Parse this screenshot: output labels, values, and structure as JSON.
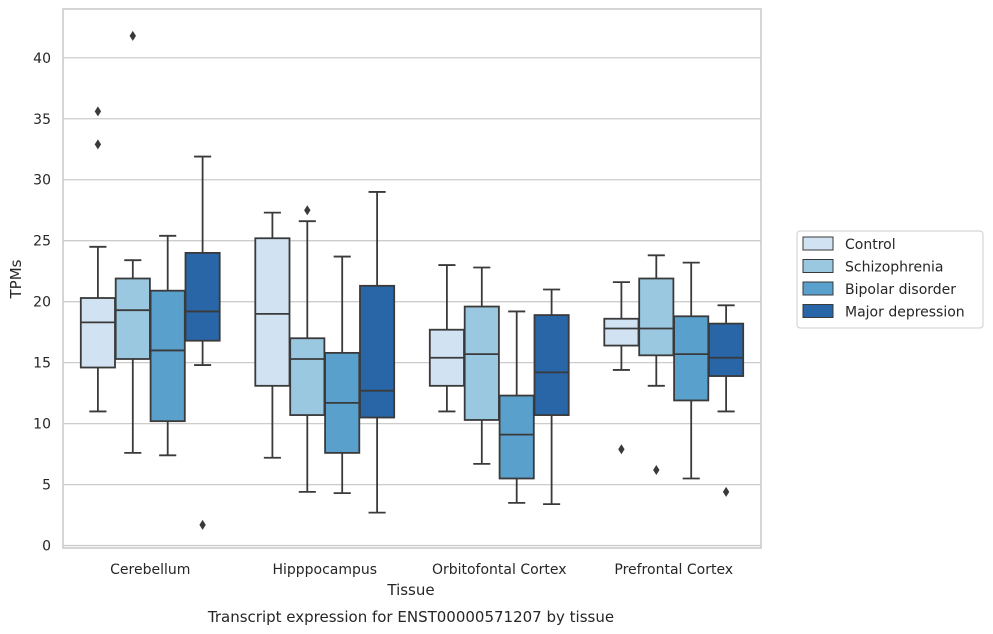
{
  "chart_data": {
    "type": "box",
    "title": "",
    "caption": "Transcript expression for ENST00000571207 by tissue",
    "xlabel": "Tissue",
    "ylabel": "TPMs",
    "ylim": [
      -0.2,
      44
    ],
    "yticks": [
      0,
      5,
      10,
      15,
      20,
      25,
      30,
      35,
      40
    ],
    "grid": true,
    "legend_position": "right",
    "categories": [
      "Cerebellum",
      "Hipppocampus",
      "Orbitofontal Cortex",
      "Prefrontal Cortex"
    ],
    "series": [
      {
        "name": "Control",
        "color": "#d1e2f2",
        "boxes": [
          {
            "whislo": 11.0,
            "q1": 14.6,
            "med": 18.3,
            "q3": 20.3,
            "whishi": 24.5,
            "fliers": [
              35.6,
              32.9
            ]
          },
          {
            "whislo": 7.2,
            "q1": 13.1,
            "med": 19.0,
            "q3": 25.2,
            "whishi": 27.3,
            "fliers": []
          },
          {
            "whislo": 11.0,
            "q1": 13.1,
            "med": 15.4,
            "q3": 17.7,
            "whishi": 23.0,
            "fliers": []
          },
          {
            "whislo": 14.4,
            "q1": 16.4,
            "med": 17.8,
            "q3": 18.6,
            "whishi": 21.6,
            "fliers": [
              7.9
            ]
          }
        ]
      },
      {
        "name": "Schizophrenia",
        "color": "#9ac8e0",
        "boxes": [
          {
            "whislo": 7.6,
            "q1": 15.3,
            "med": 19.3,
            "q3": 21.9,
            "whishi": 23.4,
            "fliers": [
              41.8
            ]
          },
          {
            "whislo": 4.4,
            "q1": 10.7,
            "med": 15.3,
            "q3": 17.0,
            "whishi": 26.6,
            "fliers": [
              27.5
            ]
          },
          {
            "whislo": 6.7,
            "q1": 10.3,
            "med": 15.7,
            "q3": 19.6,
            "whishi": 22.8,
            "fliers": []
          },
          {
            "whislo": 13.1,
            "q1": 15.6,
            "med": 17.8,
            "q3": 21.9,
            "whishi": 23.8,
            "fliers": [
              6.2
            ]
          }
        ]
      },
      {
        "name": "Bipolar disorder",
        "color": "#5aa0cd",
        "boxes": [
          {
            "whislo": 7.4,
            "q1": 10.2,
            "med": 16.0,
            "q3": 20.9,
            "whishi": 25.4,
            "fliers": []
          },
          {
            "whislo": 4.3,
            "q1": 7.6,
            "med": 11.7,
            "q3": 15.8,
            "whishi": 23.7,
            "fliers": []
          },
          {
            "whislo": 3.5,
            "q1": 5.5,
            "med": 9.1,
            "q3": 12.3,
            "whishi": 19.2,
            "fliers": []
          },
          {
            "whislo": 5.5,
            "q1": 11.9,
            "med": 15.7,
            "q3": 18.8,
            "whishi": 23.2,
            "fliers": []
          }
        ]
      },
      {
        "name": "Major depression",
        "color": "#2866a8",
        "boxes": [
          {
            "whislo": 14.8,
            "q1": 16.8,
            "med": 19.2,
            "q3": 24.0,
            "whishi": 31.9,
            "fliers": [
              1.7
            ]
          },
          {
            "whislo": 2.7,
            "q1": 10.5,
            "med": 12.7,
            "q3": 21.3,
            "whishi": 29.0,
            "fliers": []
          },
          {
            "whislo": 3.4,
            "q1": 10.7,
            "med": 14.2,
            "q3": 18.9,
            "whishi": 21.0,
            "fliers": []
          },
          {
            "whislo": 11.0,
            "q1": 13.9,
            "med": 15.4,
            "q3": 18.2,
            "whishi": 19.7,
            "fliers": [
              4.4
            ]
          }
        ]
      }
    ]
  }
}
